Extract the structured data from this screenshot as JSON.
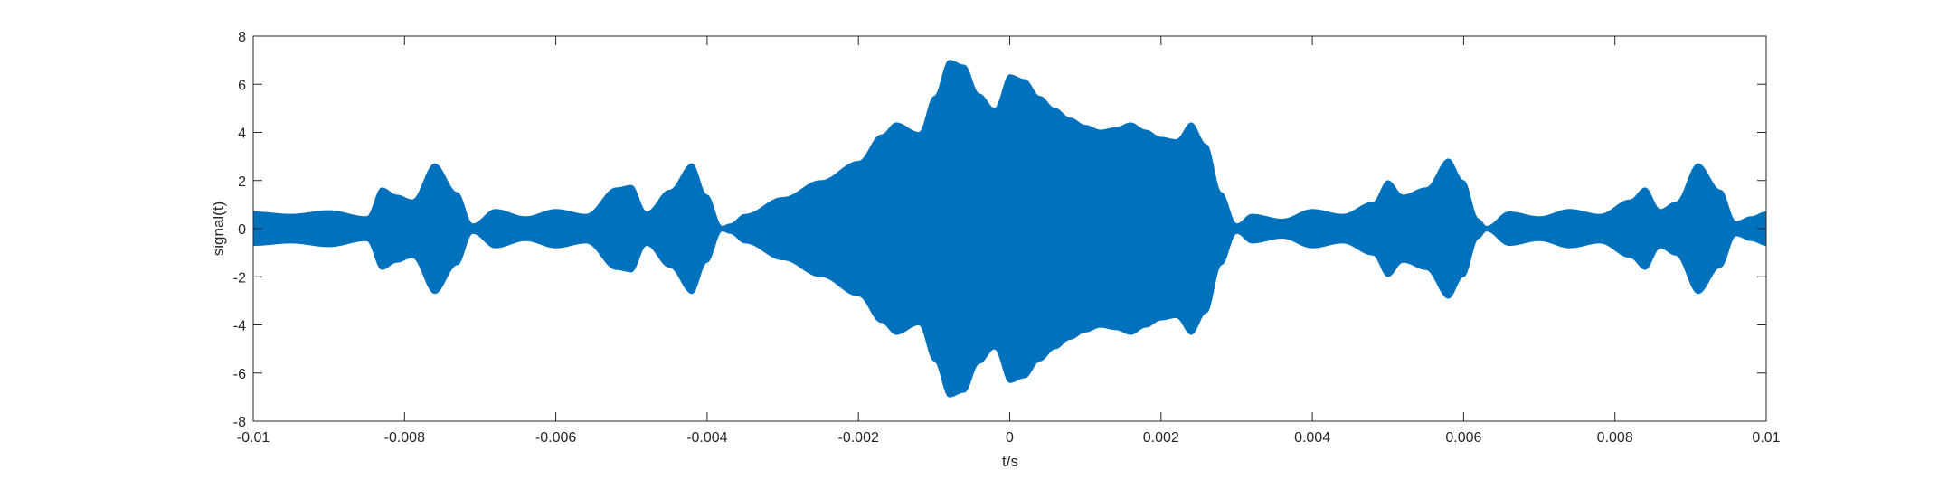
{
  "chart_data": {
    "type": "line",
    "title": "",
    "xlabel": "t/s",
    "ylabel": "signal(t)",
    "xlim": [
      -0.01,
      0.01
    ],
    "ylim": [
      -8,
      8
    ],
    "xticks": [
      -0.01,
      -0.008,
      -0.006,
      -0.004,
      -0.002,
      0,
      0.002,
      0.004,
      0.006,
      0.008,
      0.01
    ],
    "xtick_labels": [
      "-0.01",
      "-0.008",
      "-0.006",
      "-0.004",
      "-0.002",
      "0",
      "0.002",
      "0.004",
      "0.006",
      "0.008",
      "0.01"
    ],
    "yticks": [
      -8,
      -6,
      -4,
      -2,
      0,
      2,
      4,
      6,
      8
    ],
    "ytick_labels": [
      "-8",
      "-6",
      "-4",
      "-2",
      "0",
      "2",
      "4",
      "6",
      "8"
    ],
    "grid": false,
    "line_color": "#0072BD",
    "series": [
      {
        "envelope_t": [
          -0.01,
          -0.0095,
          -0.009,
          -0.0085,
          -0.0083,
          -0.0081,
          -0.0079,
          -0.0076,
          -0.0073,
          -0.0071,
          -0.0068,
          -0.0064,
          -0.006,
          -0.0056,
          -0.0052,
          -0.005,
          -0.0048,
          -0.0045,
          -0.0042,
          -0.004,
          -0.0038,
          -0.0037,
          -0.0035,
          -0.003,
          -0.0025,
          -0.002,
          -0.0017,
          -0.0015,
          -0.0012,
          -0.001,
          -0.0008,
          -0.0006,
          -0.0004,
          -0.0002,
          0,
          0.0002,
          0.0004,
          0.0006,
          0.0008,
          0.001,
          0.0012,
          0.0014,
          0.0016,
          0.0018,
          0.002,
          0.0022,
          0.0024,
          0.0026,
          0.0028,
          0.003,
          0.0032,
          0.0036,
          0.004,
          0.0044,
          0.0048,
          0.005,
          0.0052,
          0.0055,
          0.0058,
          0.006,
          0.0062,
          0.0063,
          0.0066,
          0.007,
          0.0074,
          0.0078,
          0.0082,
          0.0084,
          0.0086,
          0.0088,
          0.0091,
          0.0094,
          0.0096,
          0.0098,
          0.01
        ],
        "envelope_upper": [
          0.7,
          0.6,
          0.75,
          0.5,
          1.7,
          1.4,
          1.2,
          2.7,
          1.5,
          0.2,
          0.8,
          0.5,
          0.8,
          0.6,
          1.7,
          1.8,
          0.7,
          1.6,
          2.7,
          1.4,
          0.1,
          0.2,
          0.6,
          1.3,
          2.0,
          2.8,
          3.9,
          4.4,
          4.0,
          5.5,
          7.0,
          6.8,
          5.6,
          5.0,
          6.4,
          6.2,
          5.5,
          5.0,
          4.6,
          4.3,
          4.1,
          4.2,
          4.4,
          4.1,
          3.8,
          3.7,
          4.4,
          3.5,
          1.5,
          0.2,
          0.6,
          0.4,
          0.8,
          0.6,
          1.1,
          2.0,
          1.4,
          1.7,
          2.9,
          2.0,
          0.4,
          0.1,
          0.7,
          0.5,
          0.8,
          0.6,
          1.2,
          1.7,
          0.8,
          1.1,
          2.7,
          1.6,
          0.3,
          0.5,
          0.7
        ],
        "envelope_lower": [
          -0.7,
          -0.6,
          -0.75,
          -0.5,
          -1.7,
          -1.4,
          -1.2,
          -2.7,
          -1.5,
          -0.2,
          -0.8,
          -0.5,
          -0.8,
          -0.6,
          -1.7,
          -1.8,
          -0.7,
          -1.6,
          -2.7,
          -1.4,
          -0.1,
          -0.2,
          -0.6,
          -1.3,
          -2.0,
          -2.8,
          -3.9,
          -4.4,
          -4.0,
          -5.5,
          -7.0,
          -6.8,
          -5.6,
          -5.0,
          -6.4,
          -6.2,
          -5.5,
          -5.0,
          -4.6,
          -4.3,
          -4.1,
          -4.2,
          -4.4,
          -4.1,
          -3.8,
          -3.7,
          -4.4,
          -3.5,
          -1.5,
          -0.2,
          -0.6,
          -0.4,
          -0.8,
          -0.6,
          -1.1,
          -2.0,
          -1.4,
          -1.7,
          -2.9,
          -2.0,
          -0.4,
          -0.1,
          -0.7,
          -0.5,
          -0.8,
          -0.6,
          -1.2,
          -1.7,
          -0.8,
          -1.1,
          -2.7,
          -1.6,
          -0.3,
          -0.5,
          -0.7
        ]
      }
    ]
  }
}
